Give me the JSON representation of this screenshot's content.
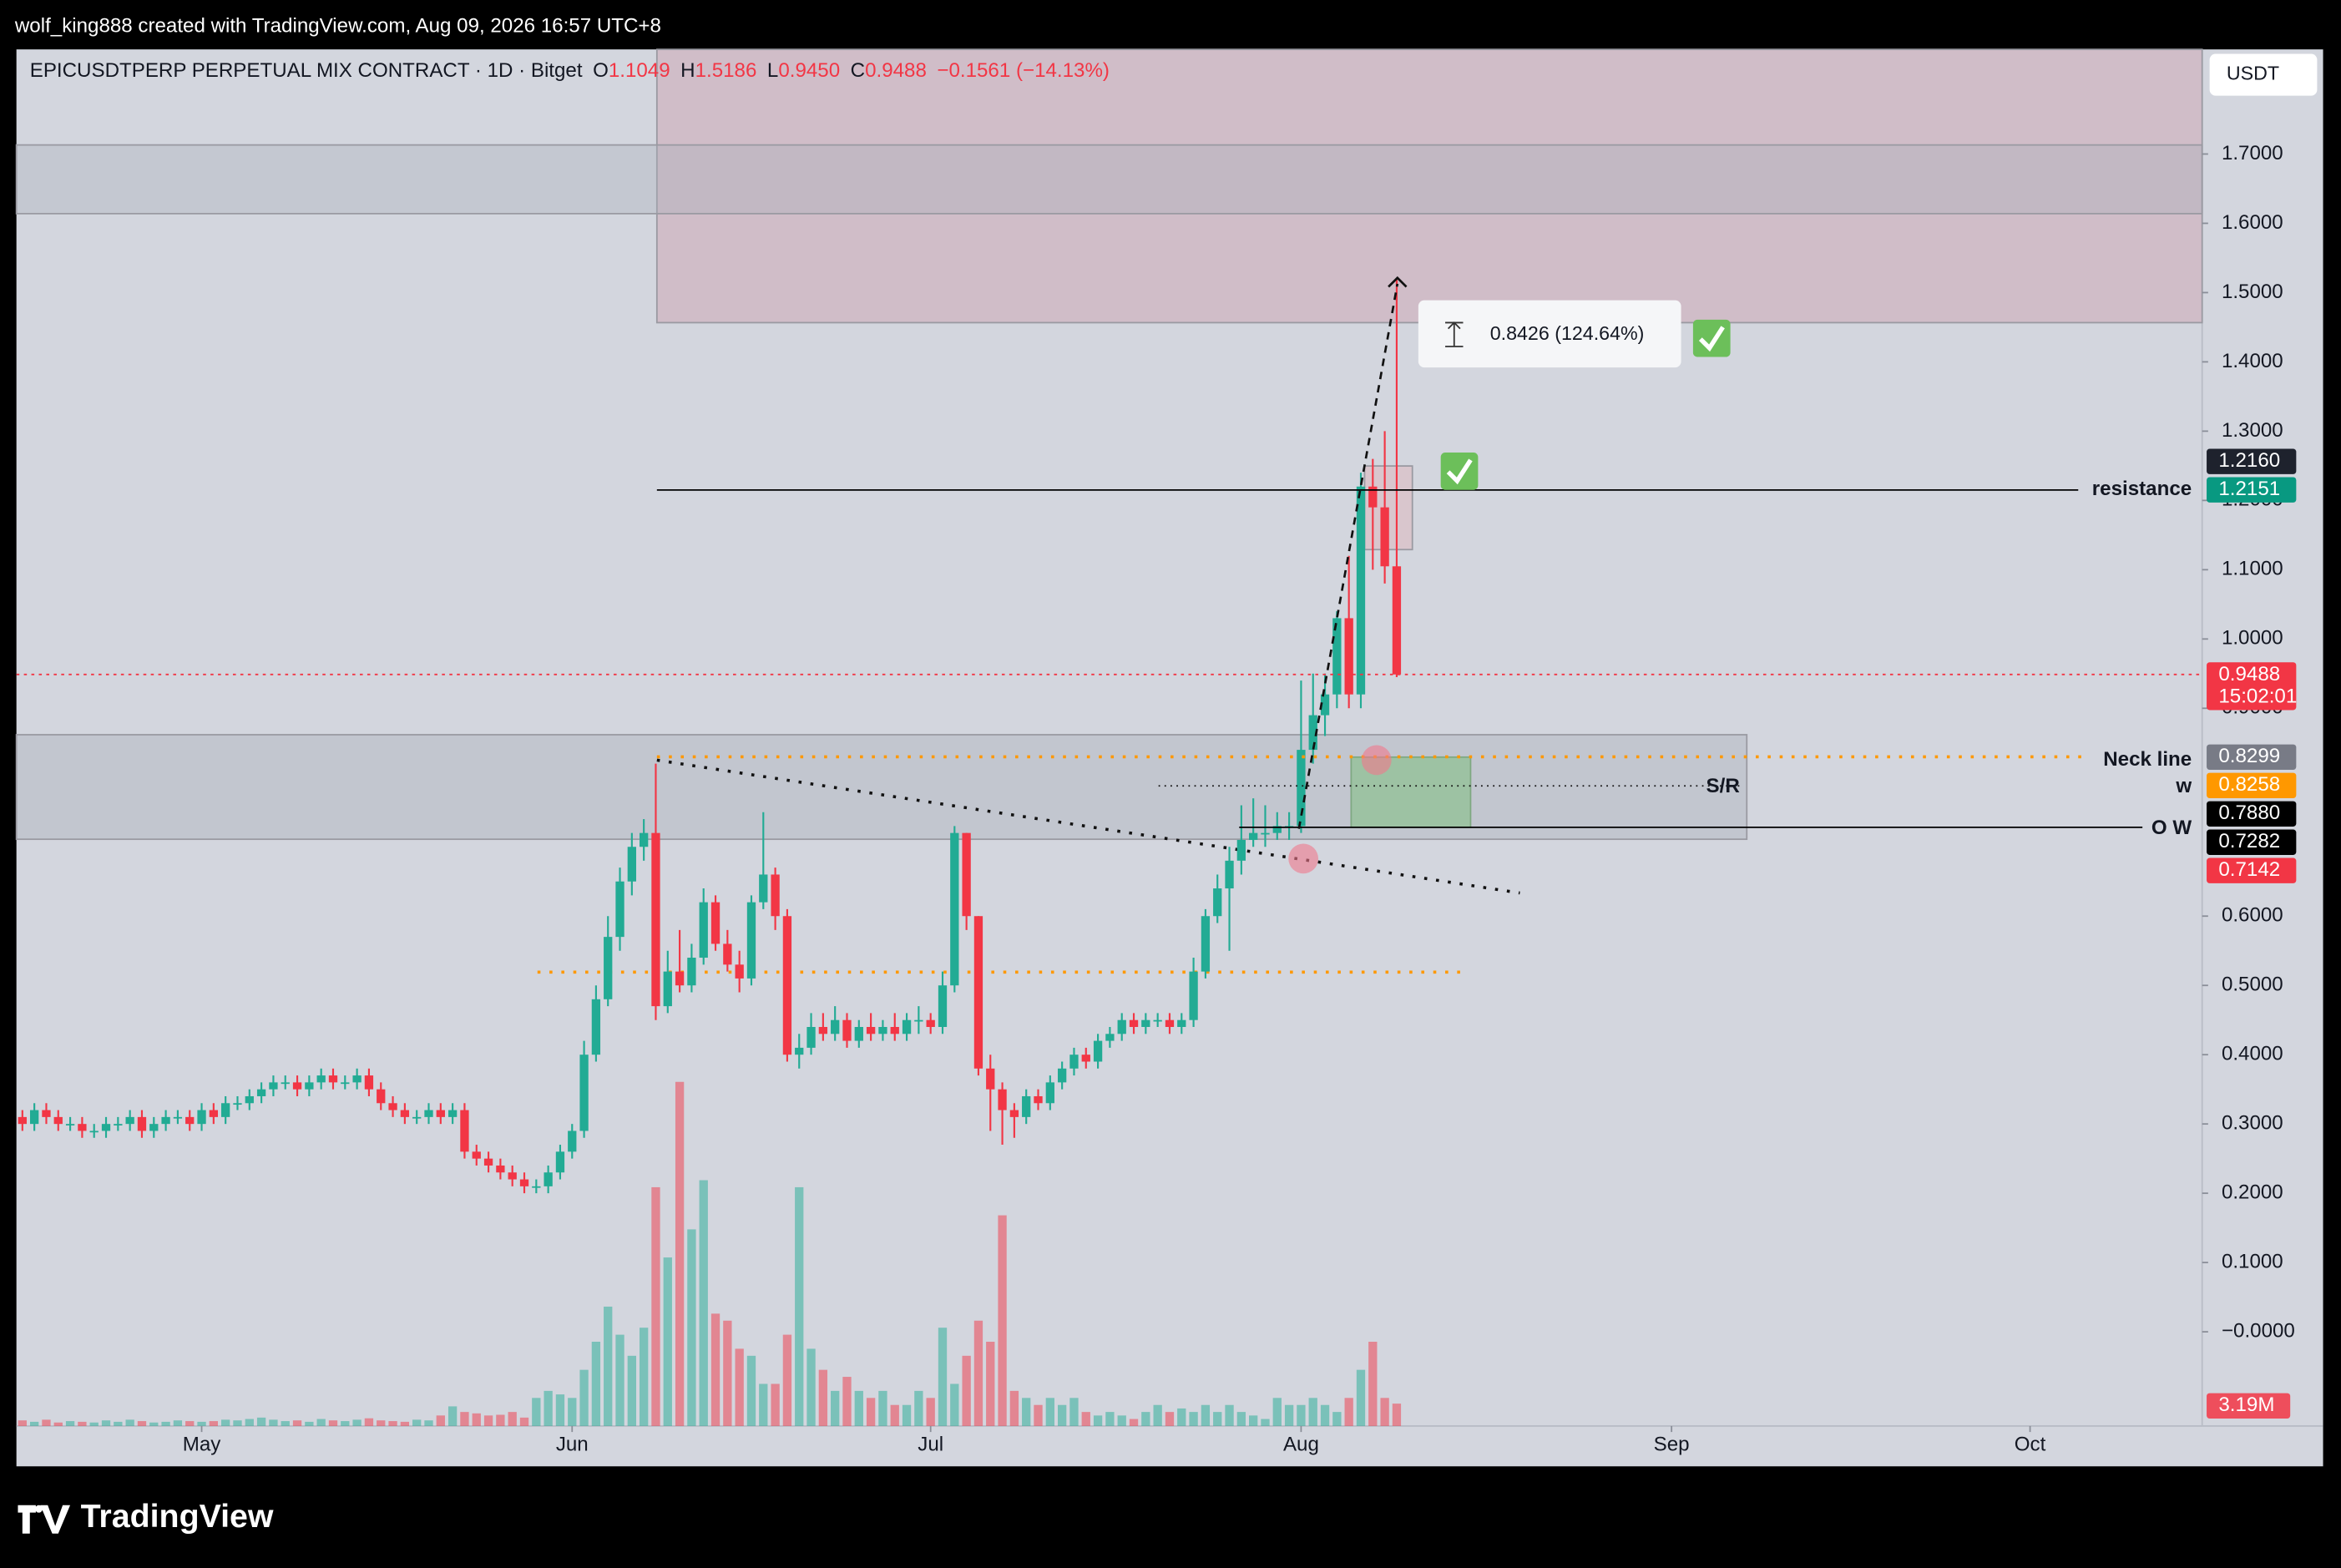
{
  "header": "wolf_king888 created with TradingView.com, Aug 09, 2026 16:57 UTC+8",
  "brand": "TradingView",
  "currency": "USDT",
  "chart_data": {
    "type": "candlestick",
    "title": "EPICUSDTPERP PERPETUAL MIX CONTRACT · 1D · Bitget",
    "ohlc": [
      {
        "key": "O",
        "text": "1.1049"
      },
      {
        "key": "H",
        "text": "1.5186"
      },
      {
        "key": "L",
        "text": "0.9450"
      },
      {
        "key": "C",
        "text": "0.9488"
      }
    ],
    "change": "−0.1561 (−14.13%)",
    "up_color": "#22ab94",
    "down_color": "#f23645",
    "open": [
      0.31,
      0.3,
      0.32,
      0.31,
      0.3,
      0.3,
      0.29,
      0.29,
      0.3,
      0.3,
      0.31,
      0.29,
      0.3,
      0.31,
      0.31,
      0.3,
      0.32,
      0.31,
      0.33,
      0.33,
      0.34,
      0.35,
      0.36,
      0.36,
      0.35,
      0.36,
      0.37,
      0.36,
      0.36,
      0.37,
      0.35,
      0.33,
      0.32,
      0.31,
      0.31,
      0.32,
      0.31,
      0.32,
      0.26,
      0.25,
      0.24,
      0.23,
      0.22,
      0.21,
      0.21,
      0.23,
      0.26,
      0.29,
      0.4,
      0.48,
      0.57,
      0.65,
      0.7,
      0.72,
      0.47,
      0.52,
      0.5,
      0.54,
      0.62,
      0.56,
      0.53,
      0.51,
      0.62,
      0.66,
      0.6,
      0.4,
      0.41,
      0.44,
      0.43,
      0.45,
      0.42,
      0.44,
      0.43,
      0.44,
      0.43,
      0.45,
      0.45,
      0.44,
      0.5,
      0.72,
      0.6,
      0.38,
      0.35,
      0.32,
      0.31,
      0.34,
      0.33,
      0.36,
      0.38,
      0.4,
      0.39,
      0.42,
      0.43,
      0.45,
      0.44,
      0.45,
      0.45,
      0.44,
      0.45,
      0.52,
      0.6,
      0.64,
      0.68,
      0.71,
      0.72,
      0.72,
      0.73,
      0.73,
      0.84,
      0.89,
      0.92,
      1.03,
      0.92,
      1.22,
      1.19,
      1.1049
    ],
    "high": [
      0.32,
      0.33,
      0.33,
      0.32,
      0.31,
      0.31,
      0.3,
      0.31,
      0.31,
      0.32,
      0.32,
      0.31,
      0.32,
      0.32,
      0.32,
      0.33,
      0.33,
      0.34,
      0.34,
      0.35,
      0.36,
      0.37,
      0.37,
      0.37,
      0.37,
      0.38,
      0.38,
      0.37,
      0.38,
      0.38,
      0.36,
      0.34,
      0.33,
      0.32,
      0.33,
      0.33,
      0.33,
      0.33,
      0.27,
      0.26,
      0.25,
      0.24,
      0.23,
      0.22,
      0.24,
      0.27,
      0.3,
      0.42,
      0.5,
      0.6,
      0.67,
      0.72,
      0.74,
      0.82,
      0.55,
      0.58,
      0.56,
      0.64,
      0.63,
      0.58,
      0.55,
      0.63,
      0.75,
      0.67,
      0.61,
      0.43,
      0.46,
      0.46,
      0.47,
      0.46,
      0.45,
      0.46,
      0.45,
      0.46,
      0.46,
      0.47,
      0.46,
      0.52,
      0.73,
      0.72,
      0.6,
      0.4,
      0.36,
      0.33,
      0.35,
      0.35,
      0.37,
      0.39,
      0.41,
      0.41,
      0.43,
      0.44,
      0.46,
      0.46,
      0.46,
      0.46,
      0.46,
      0.46,
      0.54,
      0.61,
      0.66,
      0.7,
      0.76,
      0.77,
      0.76,
      0.75,
      0.75,
      0.94,
      0.95,
      0.95,
      1.04,
      1.12,
      1.24,
      1.26,
      1.3,
      1.5186
    ],
    "low": [
      0.29,
      0.29,
      0.3,
      0.29,
      0.29,
      0.28,
      0.28,
      0.28,
      0.29,
      0.29,
      0.28,
      0.28,
      0.29,
      0.3,
      0.29,
      0.29,
      0.3,
      0.3,
      0.32,
      0.32,
      0.33,
      0.34,
      0.35,
      0.34,
      0.34,
      0.35,
      0.35,
      0.35,
      0.35,
      0.34,
      0.32,
      0.31,
      0.3,
      0.3,
      0.3,
      0.3,
      0.3,
      0.25,
      0.24,
      0.23,
      0.22,
      0.21,
      0.2,
      0.2,
      0.2,
      0.22,
      0.25,
      0.28,
      0.39,
      0.47,
      0.55,
      0.63,
      0.68,
      0.45,
      0.46,
      0.49,
      0.49,
      0.53,
      0.55,
      0.52,
      0.49,
      0.5,
      0.61,
      0.58,
      0.39,
      0.38,
      0.4,
      0.42,
      0.42,
      0.41,
      0.41,
      0.42,
      0.42,
      0.42,
      0.42,
      0.43,
      0.43,
      0.43,
      0.49,
      0.58,
      0.37,
      0.29,
      0.27,
      0.28,
      0.3,
      0.32,
      0.32,
      0.35,
      0.37,
      0.38,
      0.38,
      0.41,
      0.42,
      0.43,
      0.43,
      0.44,
      0.43,
      0.43,
      0.44,
      0.51,
      0.59,
      0.55,
      0.66,
      0.7,
      0.7,
      0.71,
      0.71,
      0.72,
      0.82,
      0.86,
      0.9,
      0.9,
      0.9,
      1.1,
      1.08,
      0.945
    ],
    "close": [
      0.3,
      0.32,
      0.31,
      0.3,
      0.3,
      0.29,
      0.29,
      0.3,
      0.3,
      0.31,
      0.29,
      0.3,
      0.31,
      0.31,
      0.3,
      0.32,
      0.31,
      0.33,
      0.33,
      0.34,
      0.35,
      0.36,
      0.36,
      0.35,
      0.36,
      0.37,
      0.36,
      0.36,
      0.37,
      0.35,
      0.33,
      0.32,
      0.31,
      0.31,
      0.32,
      0.31,
      0.32,
      0.26,
      0.25,
      0.24,
      0.23,
      0.22,
      0.21,
      0.21,
      0.23,
      0.26,
      0.29,
      0.4,
      0.48,
      0.57,
      0.65,
      0.7,
      0.72,
      0.47,
      0.52,
      0.5,
      0.54,
      0.62,
      0.56,
      0.53,
      0.51,
      0.62,
      0.66,
      0.6,
      0.4,
      0.41,
      0.44,
      0.43,
      0.45,
      0.42,
      0.44,
      0.43,
      0.44,
      0.43,
      0.45,
      0.45,
      0.44,
      0.5,
      0.72,
      0.6,
      0.38,
      0.35,
      0.32,
      0.31,
      0.34,
      0.33,
      0.36,
      0.38,
      0.4,
      0.39,
      0.42,
      0.43,
      0.45,
      0.44,
      0.45,
      0.45,
      0.44,
      0.45,
      0.52,
      0.6,
      0.64,
      0.68,
      0.71,
      0.72,
      0.72,
      0.73,
      0.73,
      0.84,
      0.89,
      0.92,
      1.03,
      0.92,
      1.22,
      1.19,
      1.1049,
      0.9488
    ],
    "volume": [
      0.8,
      0.6,
      0.9,
      0.5,
      0.7,
      0.6,
      0.5,
      0.8,
      0.6,
      0.9,
      0.7,
      0.5,
      0.6,
      0.8,
      0.7,
      0.6,
      0.7,
      0.9,
      0.8,
      1.0,
      1.2,
      0.9,
      0.7,
      0.8,
      0.6,
      1.0,
      0.8,
      0.7,
      0.9,
      1.1,
      0.8,
      0.7,
      0.6,
      0.9,
      0.8,
      1.5,
      2.8,
      2.0,
      1.8,
      1.5,
      1.6,
      2.0,
      1.2,
      4.0,
      5.0,
      4.5,
      4,
      8,
      12,
      17,
      13,
      10,
      14,
      34,
      24,
      49,
      28,
      35,
      16,
      15,
      11,
      10,
      6,
      6,
      13,
      34,
      11,
      8,
      5,
      7,
      5,
      4,
      5,
      3,
      3,
      5,
      4,
      14,
      6,
      10,
      15,
      12,
      30,
      5,
      4,
      3,
      4,
      3,
      4,
      2,
      1.5,
      2,
      1.5,
      1,
      2,
      3,
      2,
      2.5,
      2,
      3,
      2,
      3,
      2,
      1.5,
      1,
      4,
      3,
      3,
      4,
      3,
      2,
      4,
      8,
      12,
      4,
      3.19
    ],
    "volume_last_label": "3.19M",
    "volume_lim": [
      0,
      196
    ],
    "xlim": [
      -0.5,
      182.4
    ],
    "xticks": [
      {
        "value": 15,
        "label": "May"
      },
      {
        "value": 46,
        "label": "Jun"
      },
      {
        "value": 76,
        "label": "Jul"
      },
      {
        "value": 107,
        "label": "Aug"
      },
      {
        "value": 138,
        "label": "Sep"
      },
      {
        "value": 168,
        "label": "Oct"
      }
    ],
    "ylim": [
      -0.136,
      1.851
    ],
    "yticks": [
      {
        "value": 1.7,
        "label": "1.7000"
      },
      {
        "value": 1.6,
        "label": "1.6000"
      },
      {
        "value": 1.5,
        "label": "1.5000"
      },
      {
        "value": 1.4,
        "label": "1.4000"
      },
      {
        "value": 1.3,
        "label": "1.3000"
      },
      {
        "value": 1.2,
        "label": "1.2000"
      },
      {
        "value": 1.1,
        "label": "1.1000"
      },
      {
        "value": 1.0,
        "label": "1.0000"
      },
      {
        "value": 0.9,
        "label": "0.9000"
      },
      {
        "value": 0.6,
        "label": "0.6000"
      },
      {
        "value": 0.5,
        "label": "0.5000"
      },
      {
        "value": 0.4,
        "label": "0.4000"
      },
      {
        "value": 0.3,
        "label": "0.3000"
      },
      {
        "value": 0.2,
        "label": "0.2000"
      },
      {
        "value": 0.1,
        "label": "0.1000"
      },
      {
        "value": 0,
        "label": "−0.0000"
      }
    ],
    "price_labels": [
      {
        "value": 1.216,
        "label": "1.2160",
        "color": "#1e222d"
      },
      {
        "value": 1.2151,
        "label": "1.2151",
        "color": "#089981",
        "name": "resistance"
      },
      {
        "value": 0.9488,
        "label": "0.9488",
        "color": "#f23645",
        "countdown": "15:02:01"
      },
      {
        "value": 0.8299,
        "label": "0.8299",
        "color": "#787b86",
        "name": "Neck line"
      },
      {
        "value": 0.8258,
        "label": "0.8258",
        "color": "#ff9800",
        "name": "w"
      },
      {
        "value": 0.788,
        "label": "0.7880",
        "color": "#000000",
        "name": "S/R"
      },
      {
        "value": 0.7282,
        "label": "0.7282",
        "color": "#000000",
        "name": "O W"
      },
      {
        "value": 0.7142,
        "label": "0.7142",
        "color": "#f23645"
      }
    ],
    "measure": "0.8426 (124.64%)"
  }
}
